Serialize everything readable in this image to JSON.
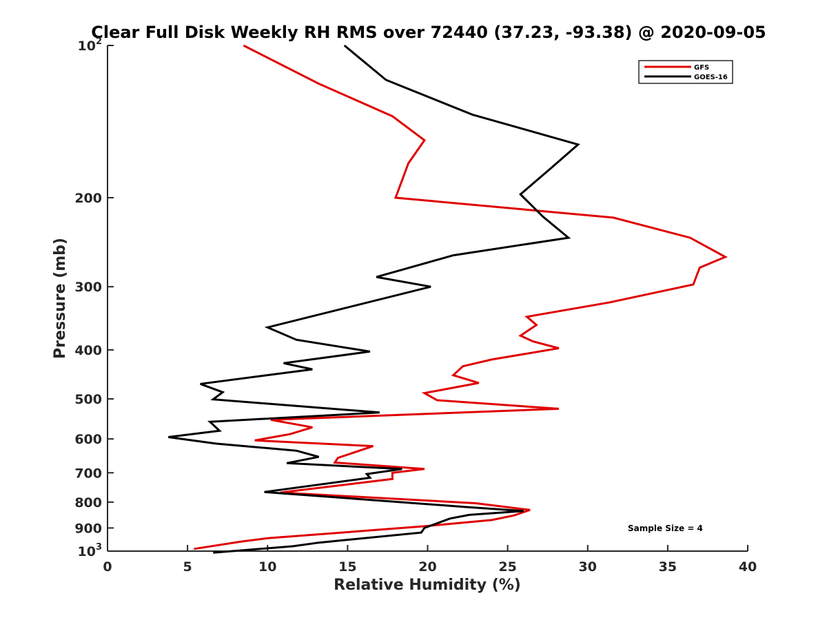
{
  "chart_data": {
    "type": "line",
    "title": "Clear Full Disk Weekly RH RMS over 72440 (37.23, -93.38) @ 2020-09-05",
    "xlabel": "Relative Humidity (%)",
    "ylabel": "Pressure (mb)",
    "xlim": [
      0,
      40
    ],
    "ylim": [
      100,
      1000
    ],
    "y_scale": "log",
    "y_reversed": true,
    "grid": false,
    "legend_position": "top-right",
    "x_ticks": [
      "0",
      "5",
      "10",
      "15",
      "20",
      "25",
      "30",
      "35",
      "40"
    ],
    "y_ticks": [
      {
        "value": 100,
        "base": "10",
        "exp": "2"
      },
      {
        "value": 200,
        "base": "200",
        "exp": ""
      },
      {
        "value": 300,
        "base": "300",
        "exp": ""
      },
      {
        "value": 400,
        "base": "400",
        "exp": ""
      },
      {
        "value": 500,
        "base": "500",
        "exp": ""
      },
      {
        "value": 600,
        "base": "600",
        "exp": ""
      },
      {
        "value": 700,
        "base": "700",
        "exp": ""
      },
      {
        "value": 800,
        "base": "800",
        "exp": ""
      },
      {
        "value": 900,
        "base": "900",
        "exp": ""
      },
      {
        "value": 1000,
        "base": "10",
        "exp": "3"
      }
    ],
    "series": [
      {
        "name": "GFS",
        "color": "#e00000",
        "points": [
          [
            8.5,
            100
          ],
          [
            13.2,
            119
          ],
          [
            17.8,
            138
          ],
          [
            19.8,
            154
          ],
          [
            18.8,
            171
          ],
          [
            18.0,
            200
          ],
          [
            31.6,
            219
          ],
          [
            36.4,
            240
          ],
          [
            38.6,
            262
          ],
          [
            37.0,
            275
          ],
          [
            36.6,
            297
          ],
          [
            31.4,
            322
          ],
          [
            26.2,
            344
          ],
          [
            26.8,
            357
          ],
          [
            25.8,
            375
          ],
          [
            26.6,
            385
          ],
          [
            28.2,
            397
          ],
          [
            24.0,
            418
          ],
          [
            22.2,
            431
          ],
          [
            21.6,
            449
          ],
          [
            23.2,
            465
          ],
          [
            19.8,
            487
          ],
          [
            20.6,
            503
          ],
          [
            28.2,
            523
          ],
          [
            10.2,
            550
          ],
          [
            12.8,
            569
          ],
          [
            11.4,
            587
          ],
          [
            9.2,
            604
          ],
          [
            16.6,
            620
          ],
          [
            14.4,
            654
          ],
          [
            14.2,
            668
          ],
          [
            19.8,
            688
          ],
          [
            17.8,
            700
          ],
          [
            17.8,
            720
          ],
          [
            10.8,
            766
          ],
          [
            23.0,
            804
          ],
          [
            26.4,
            829
          ],
          [
            25.4,
            850
          ],
          [
            24.0,
            868
          ],
          [
            19.8,
            893
          ],
          [
            10.0,
            943
          ],
          [
            8.4,
            957
          ],
          [
            5.4,
            990
          ]
        ]
      },
      {
        "name": "GOES-16",
        "color": "#000000",
        "points": [
          [
            14.8,
            100
          ],
          [
            17.4,
            117
          ],
          [
            22.8,
            137
          ],
          [
            29.4,
            157
          ],
          [
            27.6,
            176
          ],
          [
            25.8,
            197
          ],
          [
            27.2,
            218
          ],
          [
            28.8,
            240
          ],
          [
            21.6,
            260
          ],
          [
            16.8,
            287
          ],
          [
            20.2,
            300
          ],
          [
            10.0,
            361
          ],
          [
            11.8,
            382
          ],
          [
            16.4,
            403
          ],
          [
            11.0,
            425
          ],
          [
            12.8,
            437
          ],
          [
            5.8,
            467
          ],
          [
            7.2,
            485
          ],
          [
            6.6,
            501
          ],
          [
            17.0,
            532
          ],
          [
            6.4,
            555
          ],
          [
            7.0,
            578
          ],
          [
            3.8,
            595
          ],
          [
            6.8,
            613
          ],
          [
            11.8,
            633
          ],
          [
            13.2,
            651
          ],
          [
            11.2,
            670
          ],
          [
            18.4,
            688
          ],
          [
            16.2,
            704
          ],
          [
            16.4,
            716
          ],
          [
            9.8,
            764
          ],
          [
            22.4,
            818
          ],
          [
            26.0,
            833
          ],
          [
            22.6,
            848
          ],
          [
            21.4,
            862
          ],
          [
            19.8,
            900
          ],
          [
            19.6,
            919
          ],
          [
            13.2,
            962
          ],
          [
            11.6,
            978
          ],
          [
            6.6,
            1007
          ]
        ]
      }
    ],
    "annotations": [
      "Sample Size = 4"
    ]
  }
}
